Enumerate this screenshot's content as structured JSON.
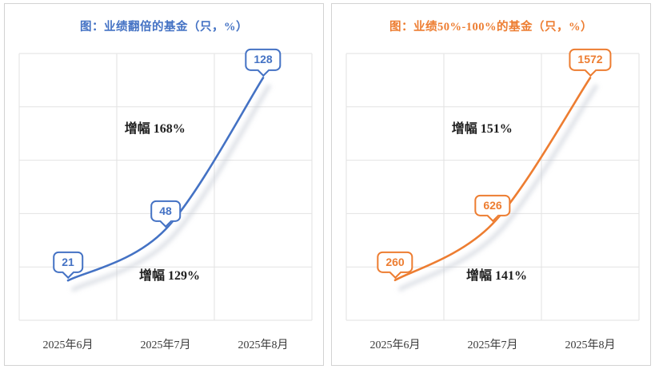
{
  "chart_data": [
    {
      "type": "line",
      "title": "图：业绩翻倍的基金（只，%）",
      "categories": [
        "2025年6月",
        "2025年7月",
        "2025年8月"
      ],
      "values": [
        21,
        48,
        128
      ],
      "annotations": {
        "upper": "增幅 168%",
        "lower": "增幅 129%"
      },
      "color": "#4472C4",
      "grid": "on",
      "legend": "none",
      "ylim": [
        0,
        140
      ]
    },
    {
      "type": "line",
      "title": "图：业绩50%-100%的基金（只，%）",
      "categories": [
        "2025年6月",
        "2025年7月",
        "2025年8月"
      ],
      "values": [
        260,
        626,
        1572
      ],
      "annotations": {
        "upper": "增幅 151%",
        "lower": "增幅 141%"
      },
      "color": "#ED7D31",
      "grid": "on",
      "legend": "none",
      "ylim": [
        0,
        1700
      ]
    }
  ]
}
